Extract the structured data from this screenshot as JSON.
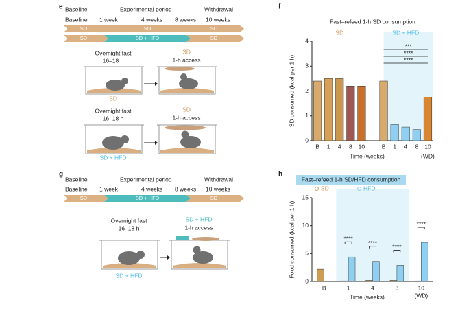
{
  "panel_e": {
    "letter": "e",
    "header_top": [
      "Baseline",
      "Experimental period",
      "Withdrawal"
    ],
    "header_bottom": [
      "Baseline",
      "1 week",
      "4 weeks",
      "8 weeks",
      "10 weeks"
    ],
    "timeline_rows": [
      [
        "SD",
        "SD",
        "SD"
      ],
      [
        "SD",
        "SD + HFD",
        "SD"
      ]
    ],
    "protocols": [
      {
        "fast": "Overnight fast",
        "duration": "16–18 h",
        "food": "SD",
        "access": "1-h access",
        "diet": "SD"
      },
      {
        "fast": "Overnight fast",
        "duration": "16–18 h",
        "food": "SD",
        "access": "1-h access",
        "diet": "SD + HFD"
      }
    ]
  },
  "panel_g": {
    "letter": "g",
    "header_top": [
      "Baseline",
      "Experimental period",
      "Withdrawal"
    ],
    "header_bottom": [
      "Baseline",
      "1 week",
      "4 weeks",
      "8 weeks",
      "10 weeks"
    ],
    "timeline_row": [
      "SD",
      "SD + HFD",
      "SD"
    ],
    "protocol": {
      "fast": "Overnight fast",
      "duration": "16–18 h",
      "food": "SD + HFD",
      "access": "1-h access",
      "diet": "SD + HFD"
    }
  },
  "chart_data": [
    {
      "type": "bar",
      "letter": "f",
      "title": "Fast–refeed 1-h SD consumption",
      "y_label": "SD consumed (kcal per 1 h)",
      "x_label": "Time (weeks)",
      "wd_label": "(WD)",
      "groups": [
        {
          "label": "SD",
          "categories": [
            "B",
            "1",
            "4",
            "8",
            "10"
          ],
          "values": [
            2.4,
            2.5,
            2.5,
            2.2,
            2.2
          ],
          "colors": [
            "#d9aa6e",
            "#d6a058",
            "#c9974e",
            "#9e5a52",
            "#c9702b"
          ]
        },
        {
          "label": "SD + HFD",
          "categories": [
            "B",
            "1",
            "4",
            "8",
            "10"
          ],
          "values": [
            2.4,
            0.65,
            0.55,
            0.45,
            1.75
          ],
          "colors": [
            "#d9aa6e",
            "#8fd0f2",
            "#8fd0f2",
            "#8fd0f2",
            "#d9862f"
          ]
        }
      ],
      "annotations": [
        "***",
        "****",
        "****"
      ],
      "ylim": [
        0,
        4
      ],
      "yticks": [
        0,
        1,
        2,
        3,
        4
      ]
    },
    {
      "type": "bar",
      "letter": "h",
      "title": "Fast–refeed 1-h SD/HFD consumption",
      "y_label": "Food consumed (kcal per 1 h)",
      "x_label": "Time (weeks)",
      "wd_label": "(WD)",
      "categories": [
        "B",
        "1",
        "4",
        "8",
        "10"
      ],
      "series": [
        {
          "name": "SD",
          "color": "#cf9c55",
          "values": [
            2.2,
            0.1,
            0.2,
            0.2,
            0.1
          ]
        },
        {
          "name": "HFD",
          "color": "#8fd0f2",
          "values": [
            null,
            4.4,
            3.6,
            2.9,
            7.0
          ]
        }
      ],
      "annotations": [
        "****",
        "****",
        "****",
        "****"
      ],
      "ylim": [
        0,
        15
      ],
      "yticks": [
        0,
        5,
        10,
        15
      ]
    }
  ]
}
